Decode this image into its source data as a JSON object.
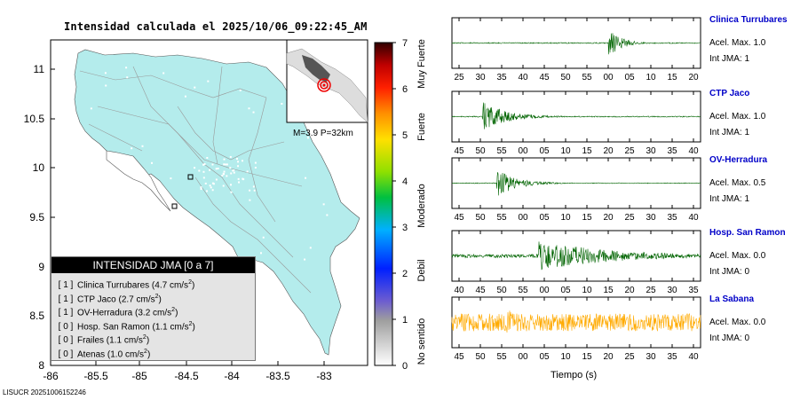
{
  "header": {
    "title": "Intensidad calculada el 2025/10/06_09:22:45_AM"
  },
  "footer": {
    "id": "LISUCR 20251006152246"
  },
  "map": {
    "y_ticks": [
      "11",
      "10.5",
      "10",
      "9.5",
      "9",
      "8.5",
      "8"
    ],
    "x_ticks": [
      "-86",
      "-85.5",
      "-85",
      "-84.5",
      "-84",
      "-83.5",
      "-83"
    ],
    "inset_label": "M=3.9 P=32km",
    "land_color": "#b4ecec"
  },
  "colorbar": {
    "ticks": [
      "0",
      "1",
      "2",
      "3",
      "4",
      "5",
      "6",
      "7"
    ],
    "categories": [
      "No sentido",
      "Debil",
      "Moderado",
      "Fuerte",
      "Muy Fuerte"
    ]
  },
  "legend": {
    "title": "INTENSIDAD JMA [0 a 7]",
    "unit": "cm/s",
    "unit_exp": "2",
    "items": [
      {
        "bracket": "[ 1 ]",
        "name": "Clinica Turrubares",
        "value": "4.7"
      },
      {
        "bracket": "[ 1 ]",
        "name": "CTP Jaco",
        "value": "2.7"
      },
      {
        "bracket": "[ 1 ]",
        "name": "OV-Herradura",
        "value": "3.2"
      },
      {
        "bracket": "[ 0 ]",
        "name": "Hosp. San Ramon",
        "value": "1.1"
      },
      {
        "bracket": "[ 0 ]",
        "name": "Frailes",
        "value": "1.1"
      },
      {
        "bracket": "[ 0 ]",
        "name": "Atenas",
        "value": "1.0"
      }
    ]
  },
  "chart_data": [
    {
      "type": "line",
      "station": "Clinica Turrubares",
      "x_ticks": [
        "25",
        "30",
        "35",
        "40",
        "45",
        "50",
        "55",
        "00",
        "05",
        "10",
        "15",
        "20"
      ],
      "color": "#006400",
      "accel_label": "Acel. Max. 1.0",
      "int_label": "Int JMA: 1",
      "onset_fraction": 0.63,
      "noise": 0.02,
      "peak": 0.6,
      "decay": 0.05
    },
    {
      "type": "line",
      "station": "CTP Jaco",
      "x_ticks": [
        "45",
        "50",
        "55",
        "00",
        "05",
        "10",
        "15",
        "20",
        "25",
        "30",
        "35",
        "40"
      ],
      "color": "#006400",
      "accel_label": "Acel. Max. 1.0",
      "int_label": "Int JMA: 1",
      "onset_fraction": 0.12,
      "noise": 0.02,
      "peak": 0.6,
      "decay": 0.1
    },
    {
      "type": "line",
      "station": "OV-Herradura",
      "x_ticks": [
        "45",
        "50",
        "55",
        "00",
        "05",
        "10",
        "15",
        "20",
        "25",
        "30",
        "35",
        "40"
      ],
      "color": "#006400",
      "accel_label": "Acel. Max. 0.5",
      "int_label": "Int JMA: 1",
      "onset_fraction": 0.18,
      "noise": 0.015,
      "peak": 0.55,
      "decay": 0.08
    },
    {
      "type": "line",
      "station": "Hosp. San Ramon",
      "x_ticks": [
        "40",
        "45",
        "50",
        "55",
        "00",
        "05",
        "10",
        "15",
        "20",
        "25",
        "30",
        "35"
      ],
      "color": "#006400",
      "accel_label": "Acel. Max. 0.0",
      "int_label": "Int JMA: 0",
      "onset_fraction": 0.35,
      "noise": 0.07,
      "peak": 0.6,
      "decay": 0.3
    },
    {
      "type": "line",
      "station": "La Sabana",
      "x_ticks": [
        "45",
        "50",
        "55",
        "00",
        "05",
        "10",
        "15",
        "20",
        "25",
        "30",
        "35",
        "40"
      ],
      "color": "#ffaa00",
      "accel_label": "Acel. Max. 0.0",
      "int_label": "Int JMA: 0",
      "onset_fraction": 0.22,
      "noise": 0.35,
      "peak": 0.95,
      "decay": 0.02
    }
  ],
  "x_axis_label": "Tiempo (s)"
}
